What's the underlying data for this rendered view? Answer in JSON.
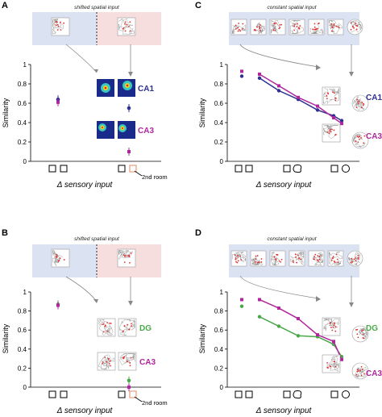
{
  "panels": {
    "A": {
      "label": "A",
      "caption": "shifted spatial input",
      "ylabel": "Similarity",
      "xlabel": "Δ sensory input",
      "room_label": "2nd room"
    },
    "B": {
      "label": "B",
      "caption": "shifted spatial input",
      "ylabel": "Similarity",
      "xlabel": "Δ sensory input",
      "room_label": "2nd room"
    },
    "C": {
      "label": "C",
      "caption": "constant spatial input",
      "ylabel": "Similarity",
      "xlabel": "Δ sensory input"
    },
    "D": {
      "label": "D",
      "caption": "constant spatial input",
      "ylabel": "Similarity",
      "xlabel": "Δ sensory input"
    }
  },
  "yticks": [
    "0",
    "0.2",
    "0.4",
    "0.6",
    "0.8",
    "1"
  ],
  "colors": {
    "CA1": "#2e3192",
    "CA3": "#b0279c",
    "DG": "#4aa84a",
    "bg_blue": "#dbe3f2",
    "bg_pink": "#f6dede",
    "arrow": "#888888",
    "room_box": "#e0a080"
  },
  "chart_data": [
    {
      "panel": "A",
      "type": "scatter",
      "ylim": [
        0,
        1
      ],
      "xlabel": "Δ sensory input",
      "ylabel": "Similarity",
      "series": [
        {
          "name": "CA1",
          "x": [
            1,
            2
          ],
          "y": [
            0.64,
            0.55
          ]
        },
        {
          "name": "CA3",
          "x": [
            1,
            2
          ],
          "y": [
            0.61,
            0.1
          ]
        }
      ]
    },
    {
      "panel": "B",
      "type": "scatter",
      "ylim": [
        0,
        1
      ],
      "xlabel": "Δ sensory input",
      "ylabel": "Similarity",
      "series": [
        {
          "name": "DG",
          "x": [
            1,
            2
          ],
          "y": [
            0.87,
            0.07
          ]
        },
        {
          "name": "CA3",
          "x": [
            1,
            2
          ],
          "y": [
            0.86,
            0.0
          ]
        }
      ]
    },
    {
      "panel": "C",
      "type": "line",
      "ylim": [
        0,
        1
      ],
      "xlabel": "Δ sensory input",
      "ylabel": "Similarity",
      "x": [
        0,
        1,
        2,
        3,
        4,
        5,
        6
      ],
      "series": [
        {
          "name": "CA1",
          "y": [
            0.88,
            0.86,
            0.73,
            0.64,
            0.53,
            0.47,
            0.42
          ]
        },
        {
          "name": "CA3",
          "y": [
            0.93,
            0.9,
            0.78,
            0.66,
            0.57,
            0.45,
            0.39
          ]
        }
      ]
    },
    {
      "panel": "D",
      "type": "line",
      "ylim": [
        0,
        1
      ],
      "xlabel": "Δ sensory input",
      "ylabel": "Similarity",
      "x": [
        0,
        1,
        2,
        3,
        4,
        5,
        6
      ],
      "series": [
        {
          "name": "DG",
          "y": [
            0.85,
            0.74,
            0.64,
            0.54,
            0.53,
            0.45,
            0.32
          ]
        },
        {
          "name": "CA3",
          "y": [
            0.92,
            0.92,
            0.83,
            0.72,
            0.55,
            0.48,
            0.29
          ]
        }
      ]
    }
  ]
}
